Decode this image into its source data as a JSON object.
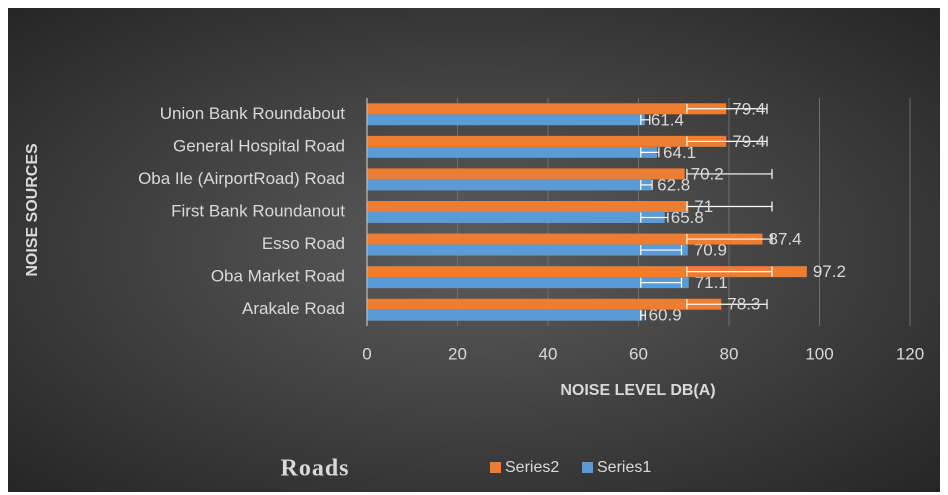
{
  "chart_data": {
    "type": "bar",
    "orientation": "horizontal",
    "title": "Roads",
    "x_axis_label": "NOISE LEVEL DB(A)",
    "y_axis_label": "NOISE SOURCES",
    "categories": [
      "Arakale Road",
      "Oba Market Road",
      "Esso Road",
      "First Bank Roundanout",
      "Oba Ile (AirportRoad) Road",
      "General Hospital Road",
      "Union Bank Roundabout"
    ],
    "series": [
      {
        "name": "Series1",
        "color": "#5b9bd5",
        "values": [
          60.9,
          71.1,
          70.9,
          65.8,
          62.8,
          64.1,
          61.4
        ],
        "error_low": [
          60.5,
          60.5,
          60.5,
          60.5,
          60.5,
          60.5,
          60.5
        ],
        "error_high": [
          61.5,
          69.5,
          69.5,
          66.5,
          63,
          64.5,
          62.5
        ]
      },
      {
        "name": "Series2",
        "color": "#ed7d31",
        "values": [
          78.3,
          97.2,
          87.4,
          71,
          70.2,
          79.4,
          79.4
        ],
        "error_low": [
          70.7,
          70.7,
          70.7,
          70.7,
          70.7,
          70.7,
          70.7
        ],
        "error_high": [
          88.4,
          89.5,
          89.5,
          89.5,
          89.5,
          88.4,
          88.4
        ]
      }
    ],
    "xlim": [
      0,
      120
    ],
    "xticks": [
      0,
      20,
      40,
      60,
      80,
      100,
      120
    ],
    "grid": true,
    "legend": "bottom"
  }
}
